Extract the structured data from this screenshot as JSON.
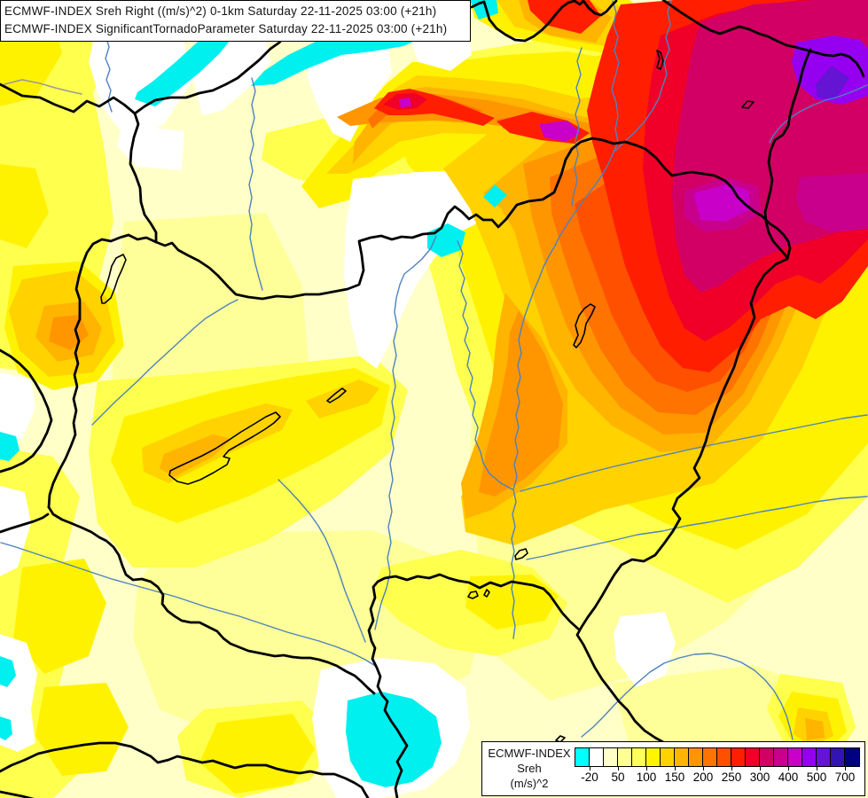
{
  "title_box": {
    "line1": "ECMWF-INDEX Sreh Right ((m/s)^2) 0-1km Saturday 22-11-2025 03:00 (+21h)",
    "line2": "ECMWF-INDEX SignificantTornadoParameter Saturday 22-11-2025 03:00 (+21h)"
  },
  "legend": {
    "title": "ECMWF-INDEX",
    "parameter": "Sreh",
    "units": "(m/s)^2",
    "tick_labels": [
      "-20",
      "50",
      "100",
      "150",
      "200",
      "250",
      "300",
      "400",
      "500",
      "700"
    ],
    "swatch_colors": [
      "#00FFFF",
      "#FFFFFF",
      "#FFFFC8",
      "#FFFF96",
      "#FFFF5A",
      "#FFF500",
      "#FFD200",
      "#FFB400",
      "#FF9600",
      "#FF7300",
      "#FF5000",
      "#FF1E00",
      "#F00028",
      "#D20064",
      "#C8008C",
      "#C800C8",
      "#9600F0",
      "#6414D2",
      "#3214B4",
      "#000082"
    ],
    "background": "#FFFFFF",
    "border_color": "#000000"
  }
}
